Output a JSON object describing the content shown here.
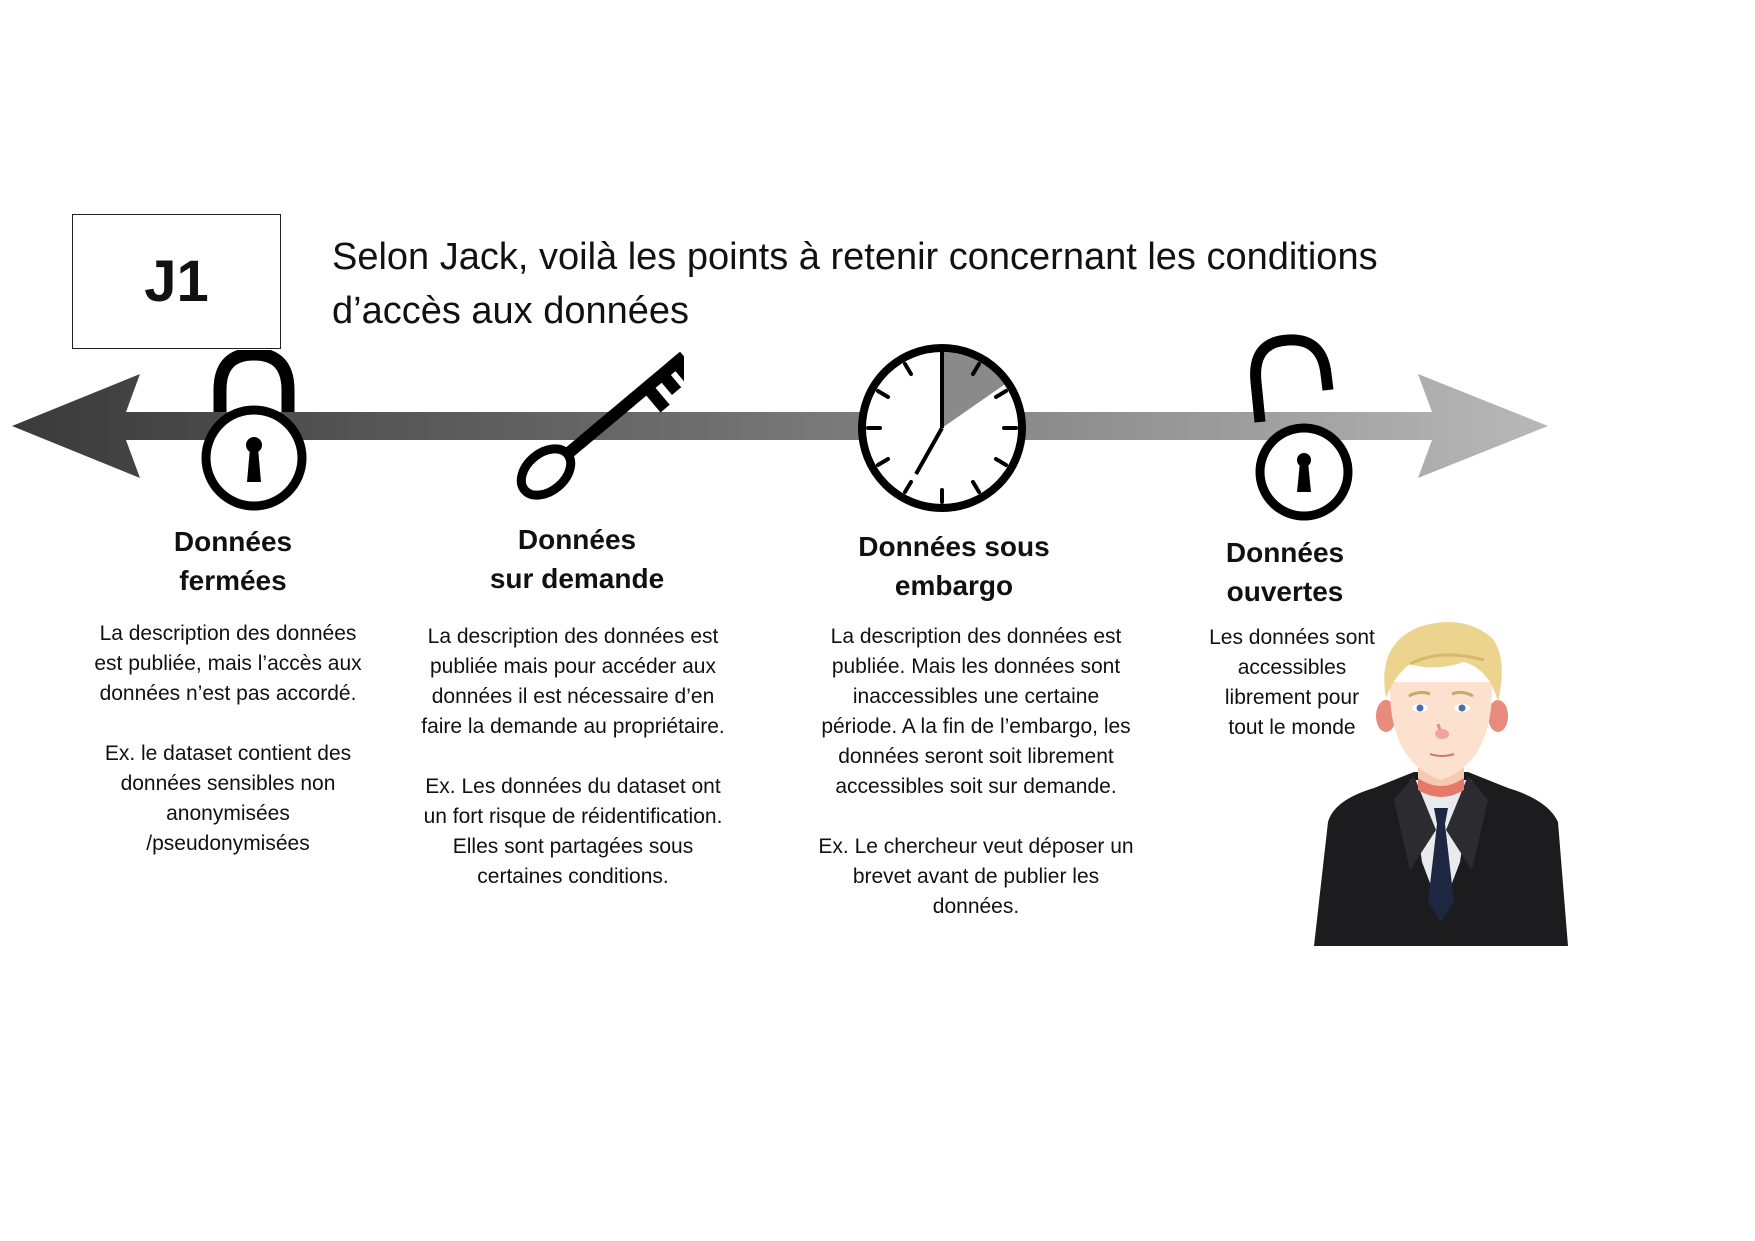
{
  "badge": {
    "label": "J1"
  },
  "title": {
    "line1": "Selon Jack, voilà les points à retenir concernant les conditions",
    "line2": "d’accès aux données"
  },
  "categories": [
    {
      "icon": "closed-padlock-icon",
      "title_line1": "Données",
      "title_line2": "fermées",
      "description": "La description des données\nest publiée, mais l’accès aux\ndonnées n’est pas accordé.\n\nEx. le dataset contient des\ndonnées sensibles non\nanonymisées\n/pseudonymisées"
    },
    {
      "icon": "key-icon",
      "title_line1": "Données",
      "title_line2": "sur demande",
      "description": "La description des données est\npubliée mais pour accéder aux\ndonnées  il est nécessaire d’en\nfaire la demande au propriétaire.\n\nEx. Les données du dataset ont\nun fort risque de réidentification.\nElles sont partagées sous\ncertaines conditions."
    },
    {
      "icon": "clock-icon",
      "title_line1": "Données sous",
      "title_line2": "embargo",
      "description": "La description des données est\npubliée. Mais les données sont\ninaccessibles une certaine\npériode. A la fin de l’embargo, les\ndonnées seront soit librement\naccessibles soit sur demande.\n\nEx. Le chercheur veut déposer un\nbrevet avant de publier les\ndonnées."
    },
    {
      "icon": "open-padlock-icon",
      "title_line1": "Données",
      "title_line2": "ouvertes",
      "description": "Les données sont\naccessibles\nlibrement pour\ntout le monde"
    }
  ],
  "colors": {
    "arrow_dark": "#3a3a3a",
    "arrow_light": "#b5b5b5",
    "icon": "#000000",
    "hair": "#e8cf86",
    "suit": "#1c1c1f"
  }
}
